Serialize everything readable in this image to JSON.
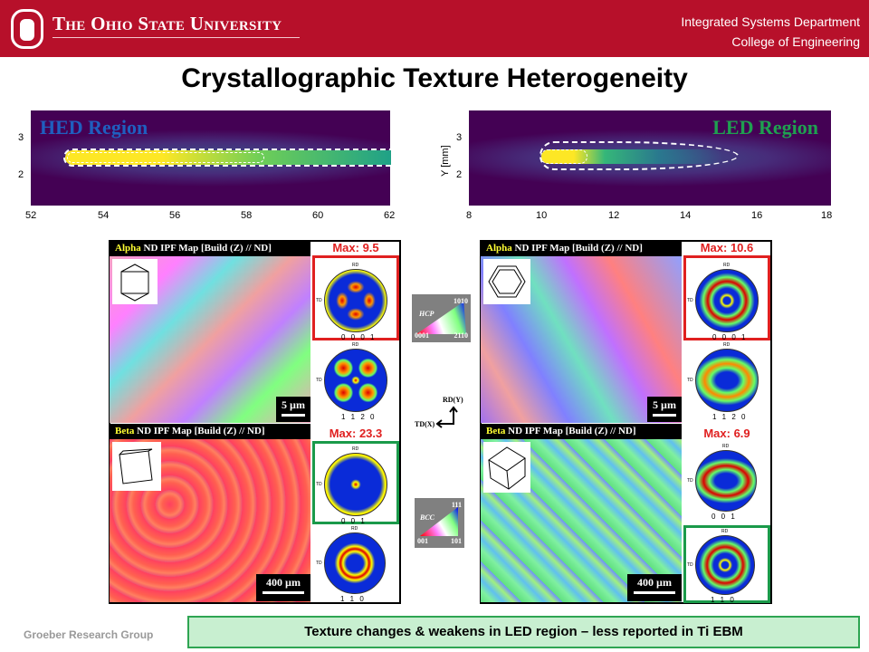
{
  "header": {
    "university": "The Ohio State University",
    "department": "Integrated Systems Department",
    "college": "College of Engineering"
  },
  "title": "Crystallographic Texture Heterogeneity",
  "plots": [
    {
      "label": "HED Region",
      "label_color": "#1f5fbf",
      "x_ticks": [
        "52",
        "54",
        "56",
        "58",
        "60",
        "62"
      ],
      "y_ticks": [
        "3",
        "2"
      ],
      "y_label": ""
    },
    {
      "label": "LED Region",
      "label_color": "#1fa050",
      "x_ticks": [
        "8",
        "10",
        "12",
        "14",
        "16",
        "18"
      ],
      "y_ticks": [
        "3",
        "2"
      ],
      "y_label": "Y [mm]"
    }
  ],
  "panels": [
    {
      "alpha_title_hl": "Alpha",
      "alpha_title": " ND IPF Map [Build (Z) // ND]",
      "alpha_max": "Max: 9.5",
      "alpha_scale": "5 µm",
      "beta_title_hl": "Beta",
      "beta_title": " ND IPF Map [Build (Z) // ND]",
      "beta_max": "Max: 23.3",
      "beta_scale": "400 µm",
      "pf_labels": [
        "0 0 0 1",
        "1 1 2 0",
        "0 0 1",
        "1 1 0"
      ]
    },
    {
      "alpha_title_hl": "Alpha",
      "alpha_title": " ND IPF Map [Build (Z) // ND]",
      "alpha_max": "Max: 10.6",
      "alpha_scale": "5 µm",
      "beta_title_hl": "Beta",
      "beta_title": " ND IPF Map [Build (Z) // ND]",
      "beta_max": "Max: 6.9",
      "beta_scale": "400 µm",
      "pf_labels": [
        "0 0 0 1",
        "1 1 2 0",
        "0 0 1",
        "1 1 0"
      ]
    }
  ],
  "pf_axes": {
    "rd": "RD",
    "td": "TD"
  },
  "legends": {
    "hcp": {
      "name": "HCP",
      "a": "0001",
      "b": "2110",
      "c": "1010"
    },
    "bcc": {
      "name": "BCC",
      "a": "001",
      "b": "101",
      "c": "111"
    },
    "axes": {
      "rd": "RD(Y)",
      "td": "TD(X)"
    }
  },
  "footer": {
    "group": "Groeber Research Group",
    "message": "Texture changes & weakens in LED region – less reported in Ti EBM"
  }
}
